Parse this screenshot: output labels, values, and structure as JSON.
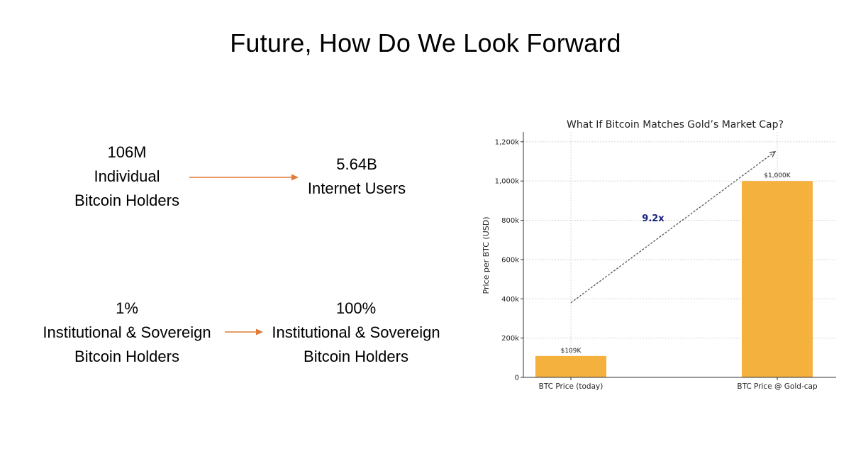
{
  "slide": {
    "title": "Future, How Do We Look Forward",
    "rows": [
      {
        "from": {
          "value": "106M",
          "lines": [
            "Individual",
            "Bitcoin Holders"
          ]
        },
        "to": {
          "value": "5.64B",
          "lines": [
            "Internet Users"
          ]
        }
      },
      {
        "from": {
          "value": "1%",
          "lines": [
            "Institutional & Sovereign",
            "Bitcoin Holders"
          ]
        },
        "to": {
          "value": "100%",
          "lines": [
            "Institutional & Sovereign",
            "Bitcoin Holders"
          ]
        }
      }
    ],
    "arrow_color": "#e07b39"
  },
  "chart_data": {
    "type": "bar",
    "title": "What If Bitcoin Matches Gold’s Market Cap?",
    "xlabel": "",
    "ylabel": "Price per BTC (USD)",
    "categories": [
      "BTC Price (today)",
      "BTC Price @ Gold-cap"
    ],
    "values": [
      109000,
      1000000
    ],
    "data_labels": [
      "$109K",
      "$1,000K"
    ],
    "ylim": [
      0,
      1250000
    ],
    "yticks": [
      0,
      200000,
      400000,
      600000,
      800000,
      1000000,
      1200000
    ],
    "ytick_labels": [
      "0",
      "200k",
      "400k",
      "600k",
      "800k",
      "1,000k",
      "1,200k"
    ],
    "grid": true,
    "bar_color": "#f4b13e",
    "annotation": {
      "text": "9.2x",
      "color": "#1a237e"
    }
  }
}
